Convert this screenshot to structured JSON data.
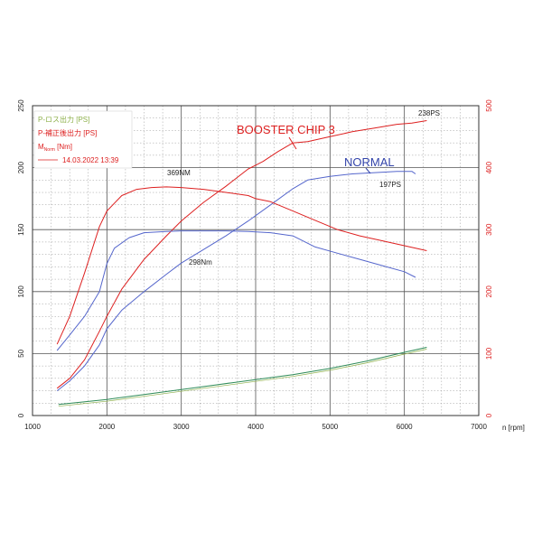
{
  "chart_data": {
    "type": "line",
    "x_axis": {
      "label": "n [rpm]",
      "range": [
        1000,
        7000
      ],
      "ticks": [
        1000,
        2000,
        3000,
        4000,
        5000,
        6000,
        7000
      ]
    },
    "y_axis_left": {
      "unit": "PS",
      "range": [
        0,
        250
      ],
      "ticks": [
        0,
        50,
        100,
        150,
        200,
        250
      ]
    },
    "y_axis_right": {
      "unit": "Nm",
      "range": [
        0,
        500
      ],
      "ticks": [
        0,
        100,
        200,
        300,
        400,
        500
      ]
    },
    "grid": true,
    "legend": {
      "placement": "top-left",
      "items": [
        {
          "label": "P-ロス出力 [PS]",
          "color": "#8db04a"
        },
        {
          "label": "P-補正後出力 [PS]",
          "color": "#dd2020"
        },
        {
          "label": "M",
          "subscript": "Norm",
          "suffix": " [Nm]",
          "color": "#dd2020"
        },
        {
          "label": "14.03.2022  13:39",
          "color": "#dd2020",
          "line": true
        }
      ]
    },
    "annotations": {
      "booster": "BOOSTER CHIP 3",
      "normal": "NORMAL",
      "peak_ps_tuned": "238PS",
      "peak_ps_stock": "197PS",
      "peak_nm_tuned": "369NM",
      "peak_nm_stock": "298Nm"
    },
    "colors": {
      "tuned": "#dd2020",
      "stock": "#5566cc",
      "loss": "#2e8b57",
      "right_axis": "#dd2020",
      "grid": "#999999"
    },
    "series": [
      {
        "name": "BOOSTER CHIP 3",
        "quantity": "power",
        "axis": "left",
        "x": [
          1330,
          1500,
          1700,
          1900,
          2000,
          2200,
          2500,
          2800,
          3000,
          3300,
          3600,
          3900,
          4000,
          4100,
          4300,
          4500,
          4700,
          5000,
          5300,
          5600,
          5900,
          6100,
          6300
        ],
        "y": [
          22,
          30,
          45,
          68,
          80,
          102,
          126,
          145,
          157,
          172,
          185,
          199,
          202,
          205,
          213,
          220,
          221,
          225,
          229,
          232,
          235,
          236,
          238
        ]
      },
      {
        "name": "NORMAL",
        "quantity": "power",
        "axis": "left",
        "x": [
          1330,
          1500,
          1700,
          1900,
          2000,
          2200,
          2500,
          2800,
          3000,
          3300,
          3600,
          3900,
          4200,
          4500,
          4700,
          5000,
          5300,
          5600,
          5900,
          6100,
          6150
        ],
        "y": [
          20,
          28,
          40,
          57,
          70,
          85,
          100,
          114,
          123,
          134,
          145,
          157,
          170,
          183,
          190,
          193,
          195,
          196,
          197,
          197,
          195
        ]
      },
      {
        "name": "BOOSTER CHIP 3",
        "quantity": "torque",
        "axis": "right",
        "x": [
          1330,
          1500,
          1700,
          1900,
          2000,
          2200,
          2400,
          2600,
          2800,
          3000,
          3300,
          3600,
          3900,
          4000,
          4200,
          4500,
          4800,
          5100,
          5400,
          5700,
          6000,
          6300
        ],
        "y": [
          115,
          160,
          230,
          305,
          330,
          355,
          365,
          368,
          369,
          368,
          365,
          360,
          355,
          350,
          345,
          330,
          315,
          300,
          290,
          282,
          274,
          266
        ]
      },
      {
        "name": "NORMAL",
        "quantity": "torque",
        "axis": "right",
        "x": [
          1330,
          1500,
          1700,
          1900,
          2000,
          2100,
          2300,
          2500,
          2800,
          3000,
          3300,
          3600,
          3900,
          4200,
          4500,
          4800,
          5100,
          5400,
          5700,
          6000,
          6150
        ],
        "y": [
          105,
          130,
          160,
          200,
          245,
          270,
          287,
          295,
          297,
          298,
          298,
          298,
          297,
          295,
          290,
          272,
          262,
          252,
          242,
          232,
          223
        ]
      },
      {
        "name": "loss",
        "quantity": "power",
        "axis": "left",
        "x": [
          1350,
          2000,
          2500,
          3000,
          3500,
          4000,
          4500,
          5000,
          5500,
          6000,
          6300
        ],
        "y": [
          9,
          13,
          17,
          21,
          25,
          29,
          33,
          38,
          44,
          51,
          55
        ]
      }
    ]
  }
}
